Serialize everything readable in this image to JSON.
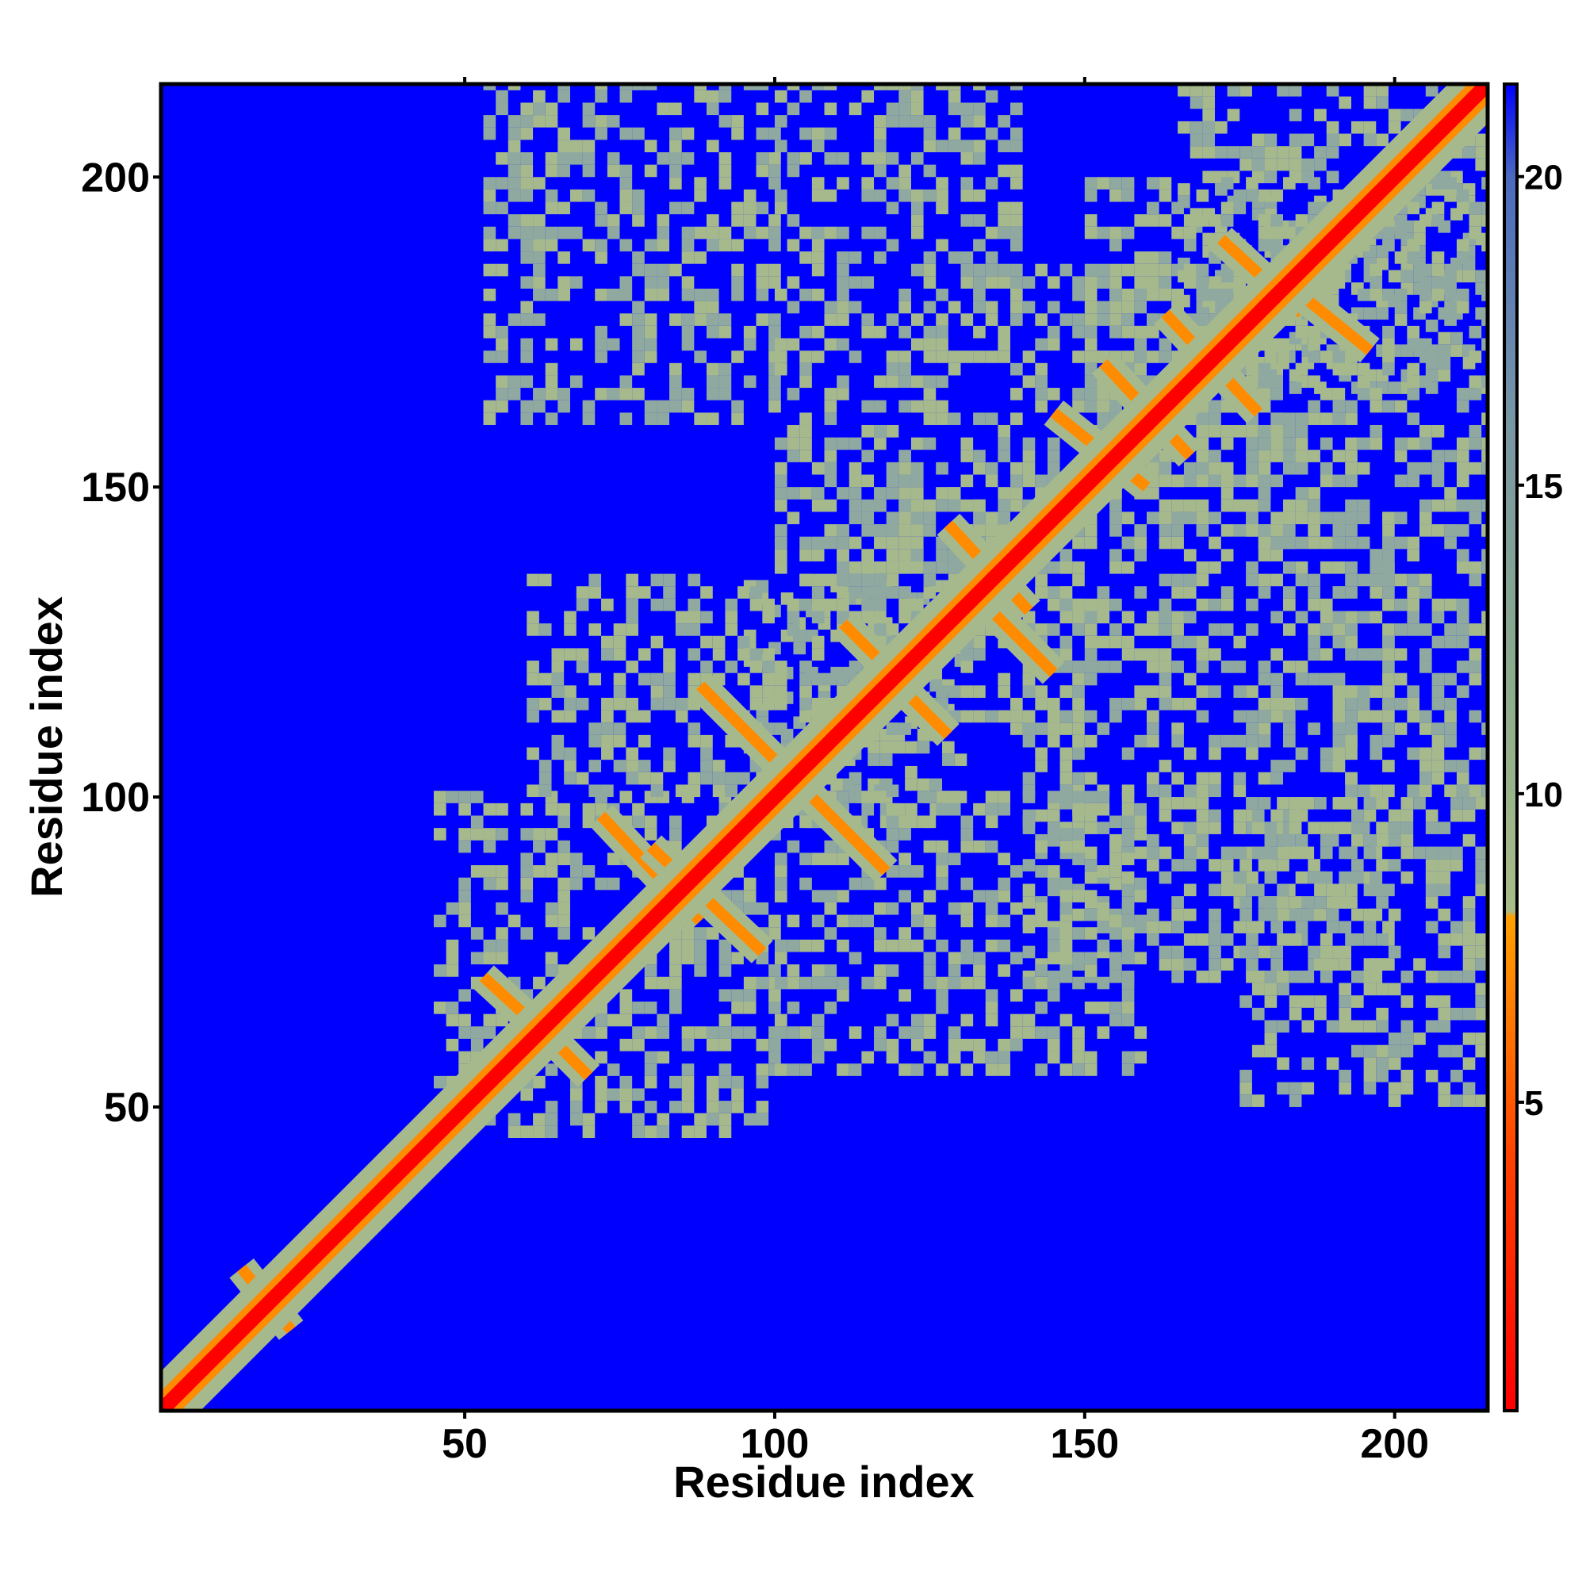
{
  "chart_data": {
    "type": "heatmap",
    "title": "",
    "xlabel": "Residue index",
    "ylabel": "Residue index",
    "xlim": [
      1,
      215
    ],
    "ylim": [
      1,
      215
    ],
    "x_ticks": [
      "50",
      "100",
      "150",
      "200"
    ],
    "y_ticks": [
      "50",
      "100",
      "150",
      "200"
    ],
    "x_tick_values": [
      50,
      100,
      150,
      200
    ],
    "y_tick_values": [
      50,
      100,
      150,
      200
    ],
    "colorbar": {
      "ticks": [
        "5",
        "10",
        "15",
        "20"
      ],
      "tick_values": [
        5,
        10,
        15,
        20
      ],
      "range": [
        0,
        21.5
      ],
      "stops": [
        {
          "value": 0,
          "color": "#ff0000"
        },
        {
          "value": 4,
          "color": "#ff4000"
        },
        {
          "value": 8,
          "color": "#ffa000"
        },
        {
          "value": 8.1,
          "color": "#a8bc88"
        },
        {
          "value": 12,
          "color": "#8aab8c"
        },
        {
          "value": 16,
          "color": "#7897a4"
        },
        {
          "value": 20,
          "color": "#4a6ac0"
        },
        {
          "value": 21.5,
          "color": "#0000ff"
        }
      ]
    },
    "background_value": 21.5,
    "background_color": "#0000ff",
    "diagonal_core_color": "#ff0000",
    "diagonal_band_color": "#ff8c00",
    "halo_color": "#a6b98c",
    "contact_lines": [
      {
        "x": [
          72,
          88
        ],
        "y": [
          80,
          97
        ]
      },
      {
        "x": [
          80,
          98
        ],
        "y": [
          75,
          92
        ]
      },
      {
        "x": [
          88,
          118
        ],
        "y": [
          88,
          118
        ]
      },
      {
        "x": [
          53,
          65
        ],
        "y": [
          60,
          71
        ]
      },
      {
        "x": [
          60,
          70
        ],
        "y": [
          55,
          65
        ]
      },
      {
        "x": [
          111,
          122
        ],
        "y": [
          117,
          128
        ]
      },
      {
        "x": [
          118,
          128
        ],
        "y": [
          110,
          120
        ]
      },
      {
        "x": [
          128,
          141
        ],
        "y": [
          130,
          144
        ]
      },
      {
        "x": [
          130,
          145
        ],
        "y": [
          120,
          135
        ]
      },
      {
        "x": [
          145,
          160
        ],
        "y": [
          150,
          162
        ]
      },
      {
        "x": [
          153,
          167
        ],
        "y": [
          155,
          170
        ]
      },
      {
        "x": [
          163,
          178
        ],
        "y": [
          162,
          178
        ]
      },
      {
        "x": [
          172,
          185
        ],
        "y": [
          178,
          190
        ]
      },
      {
        "x": [
          180,
          196
        ],
        "y": [
          172,
          185
        ]
      },
      {
        "x": [
          14,
          22
        ],
        "y": [
          14,
          24
        ]
      }
    ],
    "halo_regions": [
      {
        "x": [
          45,
          100
        ],
        "y": [
          45,
          100
        ]
      },
      {
        "x": [
          95,
          130
        ],
        "y": [
          95,
          135
        ]
      },
      {
        "x": [
          110,
          150
        ],
        "y": [
          110,
          150
        ]
      },
      {
        "x": [
          140,
          185
        ],
        "y": [
          140,
          185
        ]
      },
      {
        "x": [
          165,
          215
        ],
        "y": [
          165,
          215
        ]
      },
      {
        "x": [
          53,
          100
        ],
        "y": [
          160,
          215
        ]
      },
      {
        "x": [
          100,
          140
        ],
        "y": [
          130,
          215
        ]
      },
      {
        "x": [
          140,
          200
        ],
        "y": [
          70,
          140
        ]
      },
      {
        "x": [
          175,
          215
        ],
        "y": [
          50,
          100
        ]
      },
      {
        "x": [
          190,
          215
        ],
        "y": [
          100,
          145
        ]
      },
      {
        "x": [
          60,
          120
        ],
        "y": [
          100,
          135
        ]
      },
      {
        "x": [
          100,
          160
        ],
        "y": [
          55,
          100
        ]
      },
      {
        "x": [
          150,
          215
        ],
        "y": [
          140,
          200
        ]
      }
    ]
  }
}
